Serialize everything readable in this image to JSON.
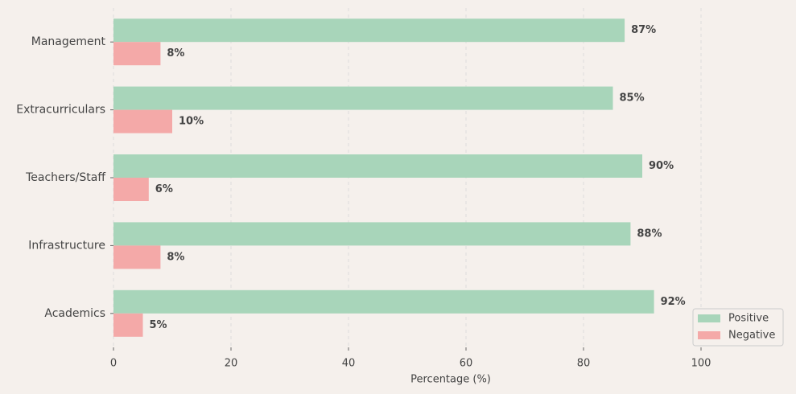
{
  "chart_data": {
    "type": "barh",
    "xlabel": "Percentage (%)",
    "categories": [
      "Management",
      "Extracurriculars",
      "Teachers/Staff",
      "Infrastructure",
      "Academics"
    ],
    "series": [
      {
        "name": "Positive",
        "color": "#a8d5ba",
        "values": [
          87,
          85,
          90,
          88,
          92
        ],
        "value_labels": [
          "87%",
          "85%",
          "90%",
          "88%",
          "92%"
        ]
      },
      {
        "name": "Negative",
        "color": "#f4a9a8",
        "values": [
          8,
          10,
          6,
          8,
          5
        ],
        "value_labels": [
          "8%",
          "10%",
          "6%",
          "8%",
          "5%"
        ]
      }
    ],
    "xlim": [
      0,
      115
    ],
    "xticks": [
      0,
      20,
      40,
      60,
      80,
      100
    ],
    "grid": true,
    "legend": "lower right"
  }
}
